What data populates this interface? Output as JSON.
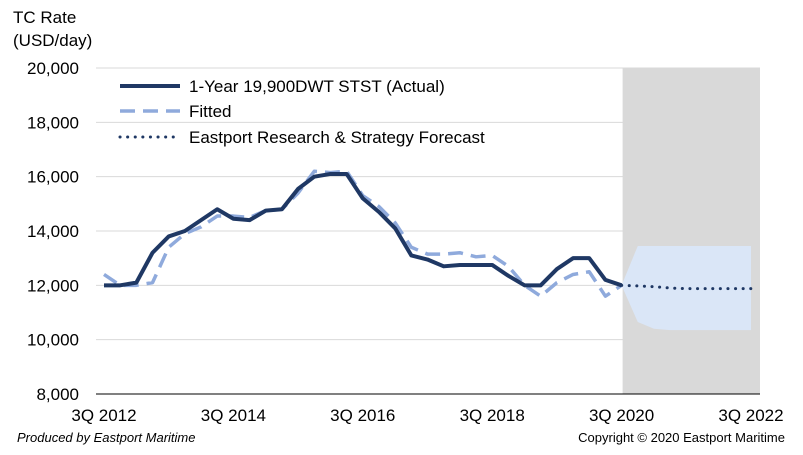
{
  "chart_data": {
    "type": "line",
    "ylabel": [
      "TC Rate",
      "(USD/day)"
    ],
    "ylim": [
      8000,
      20000
    ],
    "yticks": [
      8000,
      10000,
      12000,
      14000,
      16000,
      18000,
      20000
    ],
    "ytick_labels": [
      "8,000",
      "10,000",
      "12,000",
      "14,000",
      "16,000",
      "18,000",
      "20,000"
    ],
    "xlim": [
      "3Q 2012",
      "3Q 2022"
    ],
    "xtick_labels": [
      "3Q 2012",
      "3Q 2014",
      "3Q 2016",
      "3Q 2018",
      "3Q 2020",
      "3Q 2022"
    ],
    "grid": "horizontal",
    "legend": "top-left",
    "shaded_region": {
      "from": "3Q 2020",
      "to": "3Q 2022",
      "color": "#d9d9d9"
    },
    "colors": {
      "actual": "#1f3864",
      "fitted": "#8faadc",
      "forecast": "#1f3864",
      "band": "#dae6f7",
      "grid": "#d9d9d9"
    },
    "series": [
      {
        "name": "1-Year 19,900DWT STST (Actual)",
        "style": "solid",
        "x": [
          "3Q 2012",
          "4Q 2012",
          "1Q 2013",
          "2Q 2013",
          "3Q 2013",
          "4Q 2013",
          "1Q 2014",
          "2Q 2014",
          "3Q 2014",
          "4Q 2014",
          "1Q 2015",
          "2Q 2015",
          "3Q 2015",
          "4Q 2015",
          "1Q 2016",
          "2Q 2016",
          "3Q 2016",
          "4Q 2016",
          "1Q 2017",
          "2Q 2017",
          "3Q 2017",
          "4Q 2017",
          "1Q 2018",
          "2Q 2018",
          "3Q 2018",
          "4Q 2018",
          "1Q 2019",
          "2Q 2019",
          "3Q 2019",
          "4Q 2019",
          "1Q 2020",
          "2Q 2020",
          "3Q 2020"
        ],
        "values": [
          12000,
          12000,
          12100,
          13200,
          13800,
          14000,
          14400,
          14800,
          14450,
          14400,
          14750,
          14800,
          15550,
          16000,
          16100,
          16100,
          15200,
          14700,
          14100,
          13100,
          12950,
          12700,
          12750,
          12750,
          12750,
          12350,
          12000,
          12000,
          12600,
          13000,
          13000,
          12200,
          12000
        ]
      },
      {
        "name": "Fitted",
        "style": "dashed",
        "x": [
          "3Q 2012",
          "4Q 2012",
          "1Q 2013",
          "2Q 2013",
          "3Q 2013",
          "4Q 2013",
          "1Q 2014",
          "2Q 2014",
          "3Q 2014",
          "4Q 2014",
          "1Q 2015",
          "2Q 2015",
          "3Q 2015",
          "4Q 2015",
          "1Q 2016",
          "2Q 2016",
          "3Q 2016",
          "4Q 2016",
          "1Q 2017",
          "2Q 2017",
          "3Q 2017",
          "4Q 2017",
          "1Q 2018",
          "2Q 2018",
          "3Q 2018",
          "4Q 2018",
          "1Q 2019",
          "2Q 2019",
          "3Q 2019",
          "4Q 2019",
          "1Q 2020",
          "2Q 2020",
          "3Q 2020"
        ],
        "values": [
          12400,
          12000,
          12000,
          12100,
          13400,
          13900,
          14150,
          14550,
          14550,
          14500,
          14750,
          14800,
          15400,
          16200,
          16150,
          16200,
          15300,
          14900,
          14300,
          13400,
          13150,
          13150,
          13200,
          13050,
          13100,
          12700,
          12000,
          11600,
          12100,
          12400,
          12500,
          11600,
          12000
        ]
      },
      {
        "name": "Eastport Research & Strategy Forecast",
        "style": "dotted",
        "x": [
          "3Q 2020",
          "4Q 2020",
          "1Q 2021",
          "2Q 2021",
          "3Q 2021",
          "4Q 2021",
          "1Q 2022",
          "2Q 2022",
          "3Q 2022"
        ],
        "values": [
          12000,
          11980,
          11950,
          11900,
          11880,
          11880,
          11880,
          11880,
          11880
        ]
      }
    ],
    "forecast_band": {
      "x": [
        "3Q 2020",
        "4Q 2020",
        "1Q 2021",
        "2Q 2021",
        "3Q 2021",
        "4Q 2021",
        "1Q 2022",
        "2Q 2022",
        "3Q 2022"
      ],
      "upper": [
        12000,
        13450,
        13450,
        13450,
        13450,
        13450,
        13450,
        13450,
        13450
      ],
      "lower": [
        12000,
        10650,
        10400,
        10350,
        10350,
        10350,
        10350,
        10350,
        10350
      ]
    }
  },
  "footer": {
    "left": "Produced by Eastport Maritime",
    "right": "Copyright © 2020 Eastport Maritime"
  }
}
